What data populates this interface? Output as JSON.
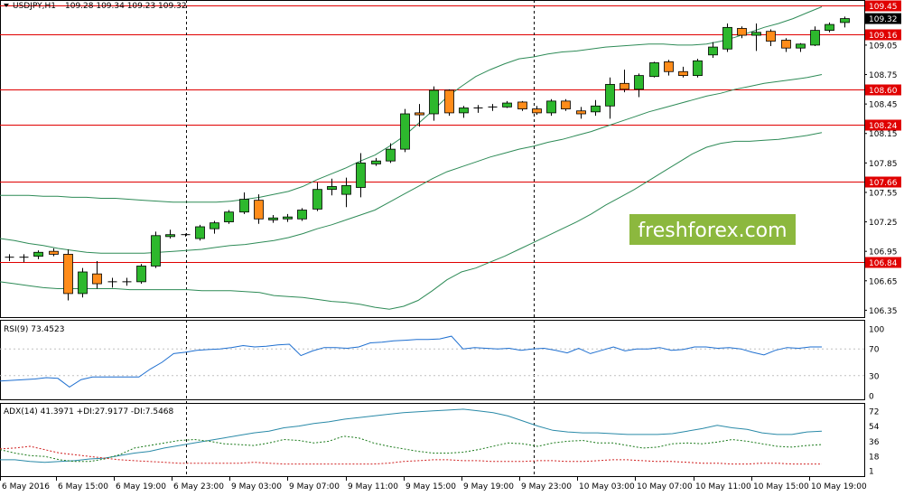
{
  "chart_data": [
    {
      "type": "candlestick",
      "title": "USDJPY,H1  109.28 109.34 109.23 109.32",
      "symbol_label": "USDJPY,H1",
      "ohlc_header": "109.28 109.34 109.23 109.32",
      "ylim": [
        106.28,
        109.5
      ],
      "y_tick_labels": [
        "109.45",
        "109.32",
        "109.16",
        "109.05",
        "108.75",
        "108.60",
        "108.45",
        "108.24",
        "108.15",
        "107.85",
        "107.66",
        "107.55",
        "107.25",
        "106.95",
        "106.84",
        "106.65",
        "106.35"
      ],
      "x_tick_labels": [
        "6 May 2016",
        "6 May 15:00",
        "6 May 19:00",
        "6 May 23:00",
        "9 May 03:00",
        "9 May 07:00",
        "9 May 11:00",
        "9 May 15:00",
        "9 May 19:00",
        "9 May 23:00",
        "10 May 03:00",
        "10 May 07:00",
        "10 May 11:00",
        "10 May 15:00",
        "10 May 19:00"
      ],
      "candles": [
        {
          "o": 106.88,
          "h": 106.92,
          "l": 106.85,
          "c": 106.89
        },
        {
          "o": 106.88,
          "h": 106.92,
          "l": 106.84,
          "c": 106.89
        },
        {
          "o": 106.9,
          "h": 106.96,
          "l": 106.87,
          "c": 106.94
        },
        {
          "o": 106.95,
          "h": 106.98,
          "l": 106.9,
          "c": 106.92
        },
        {
          "o": 106.92,
          "h": 106.97,
          "l": 106.45,
          "c": 106.52
        },
        {
          "o": 106.52,
          "h": 106.78,
          "l": 106.48,
          "c": 106.74
        },
        {
          "o": 106.72,
          "h": 106.85,
          "l": 106.57,
          "c": 106.62
        },
        {
          "o": 106.64,
          "h": 106.68,
          "l": 106.58,
          "c": 106.64
        },
        {
          "o": 106.64,
          "h": 106.68,
          "l": 106.6,
          "c": 106.64
        },
        {
          "o": 106.64,
          "h": 106.82,
          "l": 106.62,
          "c": 106.8
        },
        {
          "o": 106.8,
          "h": 107.15,
          "l": 106.78,
          "c": 107.11
        },
        {
          "o": 107.1,
          "h": 107.17,
          "l": 107.08,
          "c": 107.12
        },
        {
          "o": 107.12,
          "h": 107.13,
          "l": 107.1,
          "c": 107.11
        },
        {
          "o": 107.08,
          "h": 107.22,
          "l": 107.06,
          "c": 107.2
        },
        {
          "o": 107.18,
          "h": 107.26,
          "l": 107.13,
          "c": 107.24
        },
        {
          "o": 107.25,
          "h": 107.37,
          "l": 107.23,
          "c": 107.35
        },
        {
          "o": 107.35,
          "h": 107.55,
          "l": 107.33,
          "c": 107.48
        },
        {
          "o": 107.47,
          "h": 107.53,
          "l": 107.23,
          "c": 107.28
        },
        {
          "o": 107.27,
          "h": 107.32,
          "l": 107.24,
          "c": 107.29
        },
        {
          "o": 107.28,
          "h": 107.33,
          "l": 107.25,
          "c": 107.3
        },
        {
          "o": 107.28,
          "h": 107.39,
          "l": 107.26,
          "c": 107.37
        },
        {
          "o": 107.38,
          "h": 107.65,
          "l": 107.36,
          "c": 107.58
        },
        {
          "o": 107.58,
          "h": 107.69,
          "l": 107.52,
          "c": 107.61
        },
        {
          "o": 107.53,
          "h": 107.7,
          "l": 107.4,
          "c": 107.62
        },
        {
          "o": 107.6,
          "h": 107.95,
          "l": 107.5,
          "c": 107.85
        },
        {
          "o": 107.84,
          "h": 107.9,
          "l": 107.82,
          "c": 107.87
        },
        {
          "o": 107.87,
          "h": 108.05,
          "l": 107.85,
          "c": 107.99
        },
        {
          "o": 107.99,
          "h": 108.4,
          "l": 107.96,
          "c": 108.35
        },
        {
          "o": 108.36,
          "h": 108.45,
          "l": 108.22,
          "c": 108.34
        },
        {
          "o": 108.35,
          "h": 108.63,
          "l": 108.28,
          "c": 108.59
        },
        {
          "o": 108.59,
          "h": 108.6,
          "l": 108.33,
          "c": 108.36
        },
        {
          "o": 108.36,
          "h": 108.43,
          "l": 108.31,
          "c": 108.41
        },
        {
          "o": 108.4,
          "h": 108.44,
          "l": 108.36,
          "c": 108.41
        },
        {
          "o": 108.41,
          "h": 108.45,
          "l": 108.38,
          "c": 108.42
        },
        {
          "o": 108.42,
          "h": 108.48,
          "l": 108.41,
          "c": 108.46
        },
        {
          "o": 108.47,
          "h": 108.48,
          "l": 108.38,
          "c": 108.4
        },
        {
          "o": 108.4,
          "h": 108.43,
          "l": 108.34,
          "c": 108.36
        },
        {
          "o": 108.36,
          "h": 108.5,
          "l": 108.33,
          "c": 108.48
        },
        {
          "o": 108.48,
          "h": 108.5,
          "l": 108.38,
          "c": 108.4
        },
        {
          "o": 108.38,
          "h": 108.42,
          "l": 108.3,
          "c": 108.35
        },
        {
          "o": 108.37,
          "h": 108.49,
          "l": 108.33,
          "c": 108.43
        },
        {
          "o": 108.43,
          "h": 108.72,
          "l": 108.3,
          "c": 108.65
        },
        {
          "o": 108.66,
          "h": 108.8,
          "l": 108.57,
          "c": 108.6
        },
        {
          "o": 108.6,
          "h": 108.76,
          "l": 108.52,
          "c": 108.74
        },
        {
          "o": 108.73,
          "h": 108.88,
          "l": 108.72,
          "c": 108.87
        },
        {
          "o": 108.88,
          "h": 108.9,
          "l": 108.74,
          "c": 108.78
        },
        {
          "o": 108.78,
          "h": 108.83,
          "l": 108.72,
          "c": 108.74
        },
        {
          "o": 108.74,
          "h": 108.91,
          "l": 108.72,
          "c": 108.89
        },
        {
          "o": 108.95,
          "h": 109.08,
          "l": 108.92,
          "c": 109.03
        },
        {
          "o": 109.01,
          "h": 109.27,
          "l": 108.98,
          "c": 109.23
        },
        {
          "o": 109.22,
          "h": 109.24,
          "l": 109.12,
          "c": 109.15
        },
        {
          "o": 109.15,
          "h": 109.27,
          "l": 108.99,
          "c": 109.18
        },
        {
          "o": 109.19,
          "h": 109.21,
          "l": 109.04,
          "c": 109.09
        },
        {
          "o": 109.1,
          "h": 109.12,
          "l": 108.98,
          "c": 109.02
        },
        {
          "o": 109.02,
          "h": 109.07,
          "l": 108.98,
          "c": 109.06
        },
        {
          "o": 109.05,
          "h": 109.24,
          "l": 109.04,
          "c": 109.2
        },
        {
          "o": 109.2,
          "h": 109.28,
          "l": 109.18,
          "c": 109.26
        },
        {
          "o": 109.28,
          "h": 109.34,
          "l": 109.23,
          "c": 109.32
        }
      ],
      "bollinger": {
        "upper": [
          107.52,
          107.52,
          107.52,
          107.51,
          107.51,
          107.5,
          107.5,
          107.49,
          107.49,
          107.48,
          107.47,
          107.46,
          107.45,
          107.45,
          107.45,
          107.45,
          107.46,
          107.48,
          107.5,
          107.53,
          107.56,
          107.61,
          107.68,
          107.74,
          107.8,
          107.87,
          107.93,
          108.02,
          108.12,
          108.25,
          108.38,
          108.52,
          108.63,
          108.73,
          108.8,
          108.86,
          108.91,
          108.93,
          108.96,
          108.98,
          108.99,
          109.01,
          109.03,
          109.04,
          109.05,
          109.06,
          109.06,
          109.05,
          109.05,
          109.06,
          109.09,
          109.13,
          109.18,
          109.23,
          109.27,
          109.32,
          109.38,
          109.44
        ],
        "middle": [
          107.08,
          107.06,
          107.03,
          107.01,
          106.98,
          106.96,
          106.94,
          106.93,
          106.93,
          106.93,
          106.93,
          106.94,
          106.95,
          106.96,
          106.97,
          106.99,
          107.01,
          107.02,
          107.04,
          107.06,
          107.09,
          107.13,
          107.18,
          107.22,
          107.27,
          107.32,
          107.37,
          107.45,
          107.53,
          107.61,
          107.69,
          107.76,
          107.81,
          107.86,
          107.91,
          107.95,
          107.99,
          108.02,
          108.06,
          108.09,
          108.13,
          108.17,
          108.22,
          108.27,
          108.32,
          108.37,
          108.41,
          108.45,
          108.49,
          108.53,
          108.56,
          108.6,
          108.63,
          108.66,
          108.68,
          108.7,
          108.72,
          108.75
        ],
        "lower": [
          106.64,
          106.62,
          106.6,
          106.58,
          106.57,
          106.57,
          106.57,
          106.57,
          106.57,
          106.56,
          106.56,
          106.56,
          106.56,
          106.56,
          106.55,
          106.55,
          106.55,
          106.54,
          106.53,
          106.5,
          106.49,
          106.48,
          106.46,
          106.44,
          106.43,
          106.41,
          106.38,
          106.36,
          106.39,
          106.45,
          106.55,
          106.66,
          106.74,
          106.78,
          106.84,
          106.9,
          106.97,
          107.04,
          107.11,
          107.18,
          107.25,
          107.33,
          107.42,
          107.5,
          107.58,
          107.67,
          107.76,
          107.85,
          107.94,
          108.01,
          108.05,
          108.07,
          108.07,
          108.08,
          108.09,
          108.11,
          108.13,
          108.16
        ]
      },
      "hlines": [
        {
          "value": 109.45,
          "label": "109.45"
        },
        {
          "value": 109.16,
          "label": "109.16"
        },
        {
          "value": 108.6,
          "label": "108.60"
        },
        {
          "value": 108.24,
          "label": "108.24"
        },
        {
          "value": 107.66,
          "label": "107.66"
        },
        {
          "value": 106.84,
          "label": "106.84"
        }
      ],
      "current_price_label": "109.32",
      "watermark": "freshforex.com"
    },
    {
      "type": "line",
      "title": "RSI(9) 73.4523",
      "ylim": [
        0,
        100
      ],
      "y_tick_labels": [
        "100",
        "70",
        "30",
        "0"
      ],
      "series": [
        {
          "values": [
            22,
            23,
            24,
            25,
            27,
            26,
            13,
            24,
            28,
            28,
            28,
            28,
            28,
            40,
            50,
            63,
            65,
            68,
            69,
            70,
            72,
            75,
            73,
            74,
            76,
            77,
            60,
            67,
            72,
            72,
            71,
            73,
            79,
            80,
            82,
            83,
            84,
            84,
            85,
            89,
            70,
            72,
            71,
            70,
            71,
            68,
            70,
            71,
            68,
            64,
            71,
            63,
            68,
            73,
            67,
            70,
            70,
            72,
            68,
            69,
            73,
            73,
            71,
            72,
            70,
            65,
            61,
            68,
            72,
            71,
            73,
            73
          ]
        }
      ]
    },
    {
      "type": "line",
      "title": "ADX(14) 41.3971 +DI:27.9177 -DI:7.5468",
      "ylim": [
        0,
        75
      ],
      "y_tick_labels": [
        "72",
        "54",
        "36",
        "18",
        "1"
      ],
      "series": [
        {
          "values": [
            14,
            14,
            12,
            11,
            12,
            13,
            15,
            16,
            19,
            22,
            24,
            28,
            31,
            34,
            37,
            40,
            43,
            46,
            48,
            52,
            54,
            57,
            59,
            62,
            64,
            66,
            68,
            70,
            71,
            72,
            73,
            74,
            72,
            70,
            66,
            60,
            54,
            49,
            47,
            46,
            46,
            45,
            44,
            44,
            44,
            45,
            48,
            51,
            55,
            52,
            50,
            46,
            44,
            44,
            47,
            48
          ]
        },
        {
          "values": [
            26,
            22,
            19,
            18,
            14,
            12,
            12,
            15,
            20,
            28,
            31,
            34,
            37,
            38,
            36,
            33,
            32,
            31,
            34,
            38,
            37,
            34,
            36,
            42,
            40,
            34,
            30,
            27,
            24,
            22,
            22,
            23,
            26,
            30,
            34,
            33,
            30,
            34,
            36,
            37,
            34,
            34,
            31,
            28,
            29,
            33,
            34,
            33,
            35,
            38,
            36,
            33,
            30,
            29,
            31,
            32
          ]
        },
        {
          "values": [
            27,
            28,
            30,
            26,
            22,
            20,
            18,
            16,
            14,
            13,
            12,
            11,
            10,
            10,
            10,
            10,
            10,
            11,
            10,
            9,
            9,
            9,
            9,
            9,
            9,
            9,
            10,
            12,
            13,
            14,
            14,
            13,
            13,
            12,
            12,
            12,
            13,
            13,
            12,
            12,
            13,
            14,
            14,
            13,
            12,
            12,
            11,
            10,
            10,
            9,
            9,
            10,
            10,
            9,
            9,
            9
          ]
        }
      ]
    }
  ]
}
